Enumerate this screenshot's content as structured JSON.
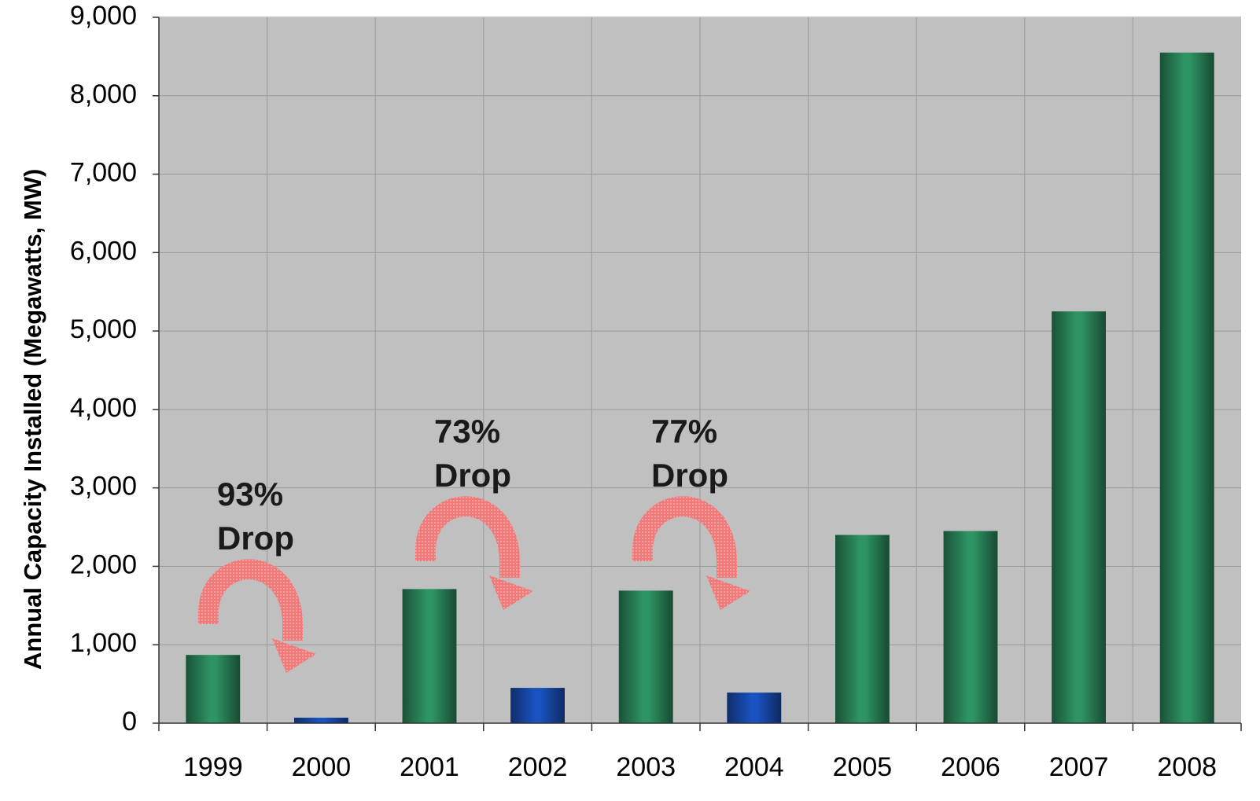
{
  "chart_data": {
    "type": "bar",
    "y_label": "Annual Capacity Installed (Megawatts, MW)",
    "categories": [
      "1999",
      "2000",
      "2001",
      "2002",
      "2003",
      "2004",
      "2005",
      "2006",
      "2007",
      "2008"
    ],
    "values": [
      870,
      70,
      1710,
      450,
      1690,
      390,
      2400,
      2450,
      5250,
      8550
    ],
    "colors": [
      "#2e9463",
      "#1a52c0",
      "#2e9463",
      "#1a52c0",
      "#2e9463",
      "#1a52c0",
      "#2e9463",
      "#2e9463",
      "#2e9463",
      "#2e9463"
    ],
    "ylim": [
      0,
      9000
    ],
    "yticks": [
      0,
      {
        "value": 1000,
        "label": "1,000"
      },
      {
        "value": 2000,
        "label": "2,000"
      },
      {
        "value": 3000,
        "label": "3,000"
      },
      {
        "value": 4000,
        "label": "4,000"
      },
      {
        "value": 5000,
        "label": "5,000"
      },
      {
        "value": 6000,
        "label": "6,000"
      },
      {
        "value": 7000,
        "label": "7,000"
      },
      {
        "value": 8000,
        "label": "8,000"
      },
      {
        "value": 9000,
        "label": "9,000"
      }
    ],
    "grid": true,
    "annotations": [
      {
        "lines": [
          "93%",
          "Drop"
        ]
      },
      {
        "lines": [
          "73%",
          "Drop"
        ]
      },
      {
        "lines": [
          "77%",
          "Drop"
        ]
      }
    ]
  }
}
